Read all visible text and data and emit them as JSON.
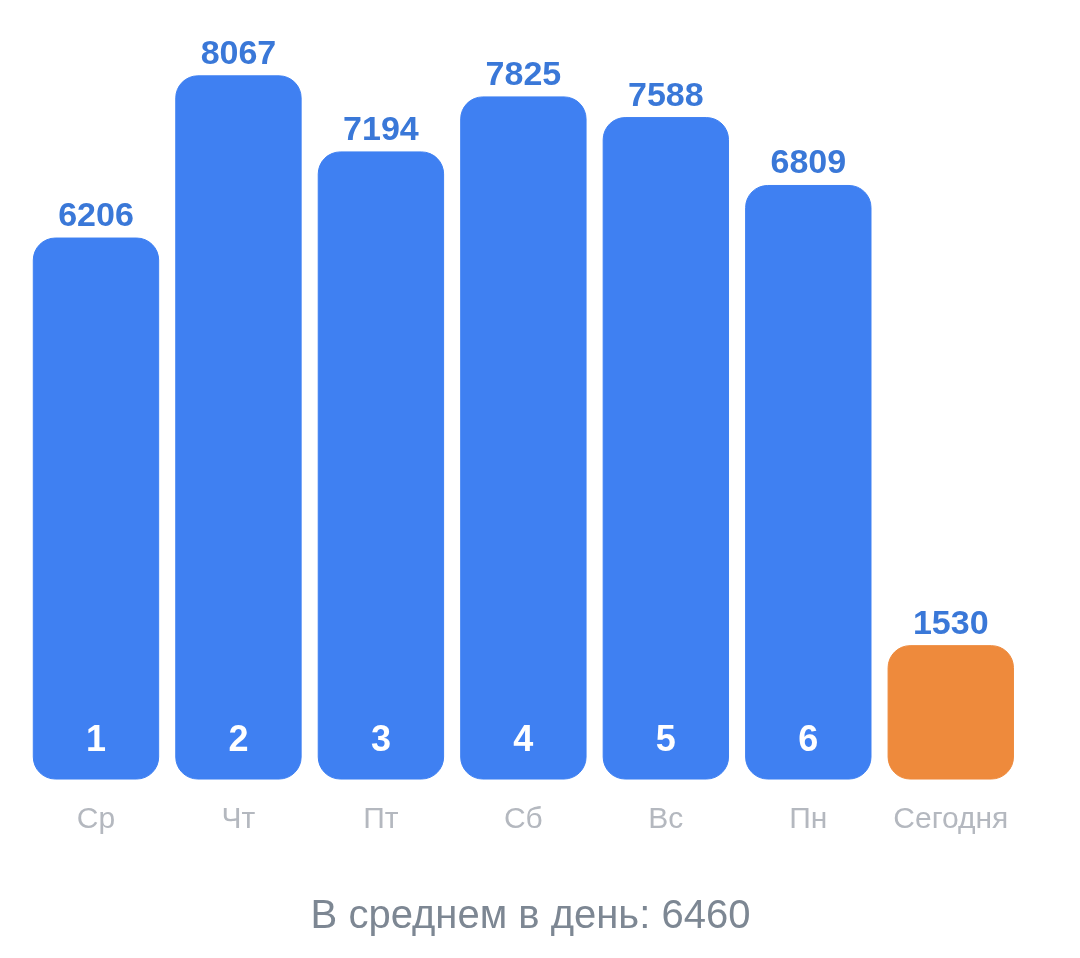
{
  "chart_data": {
    "type": "bar",
    "categories": [
      "Ср",
      "Чт",
      "Пт",
      "Сб",
      "Вс",
      "Пн",
      "Сегодня"
    ],
    "values": [
      6206,
      8067,
      7194,
      7825,
      7588,
      6809,
      1530
    ],
    "colors": [
      "#3f80f2",
      "#3f80f2",
      "#3f80f2",
      "#3f80f2",
      "#3f80f2",
      "#3f80f2",
      "#ee8a3c"
    ],
    "data_labels": true,
    "grid": false,
    "annotations": [
      "1",
      "2",
      "3",
      "4",
      "5",
      "6",
      "В среднем в день: 6460"
    ]
  }
}
